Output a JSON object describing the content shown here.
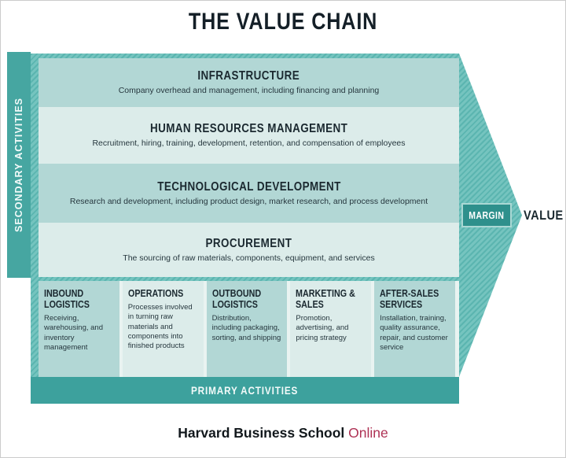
{
  "title": "THE VALUE CHAIN",
  "labels": {
    "secondary": "SECONDARY ACTIVITIES",
    "primary": "PRIMARY ACTIVITIES",
    "margin": "MARGIN",
    "value": "VALUE"
  },
  "secondary_rows": [
    {
      "heading": "INFRASTRUCTURE",
      "description": "Company overhead and management, including financing and planning"
    },
    {
      "heading": "HUMAN RESOURCES MANAGEMENT",
      "description": "Recruitment, hiring, training, development, retention, and compensation of employees"
    },
    {
      "heading": "TECHNOLOGICAL DEVELOPMENT",
      "description": "Research and development, including product design, market research, and process development"
    },
    {
      "heading": "PROCUREMENT",
      "description": "The sourcing of raw materials, components, equipment, and services"
    }
  ],
  "primary_columns": [
    {
      "heading": "INBOUND LOGISTICS",
      "description": "Receiving, warehousing, and inventory management"
    },
    {
      "heading": "OPERATIONS",
      "description": "Processes involved in turning raw materials and components into finished products"
    },
    {
      "heading": "OUTBOUND LOGISTICS",
      "description": "Distribution, including packaging, sorting, and shipping"
    },
    {
      "heading": "MARKETING & SALES",
      "description": "Promotion, advertising, and pricing strategy"
    },
    {
      "heading": "AFTER-SALES SERVICES",
      "description": "Installation, training, quality assurance, repair, and customer service"
    }
  ],
  "footer": {
    "brand": "Harvard Business School",
    "suffix": "Online"
  },
  "colors": {
    "teal_solid": "#42a49f",
    "teal_hatch_dark": "#5bb5b0",
    "teal_hatch_light": "#75c4bf",
    "band_medium": "#b2d7d5",
    "band_light": "#dcecea",
    "pale_gap": "#e9f3f1",
    "margin_badge": "#2e908c",
    "heading_text": "#1b2930",
    "footer_crimson": "#ae3154"
  }
}
